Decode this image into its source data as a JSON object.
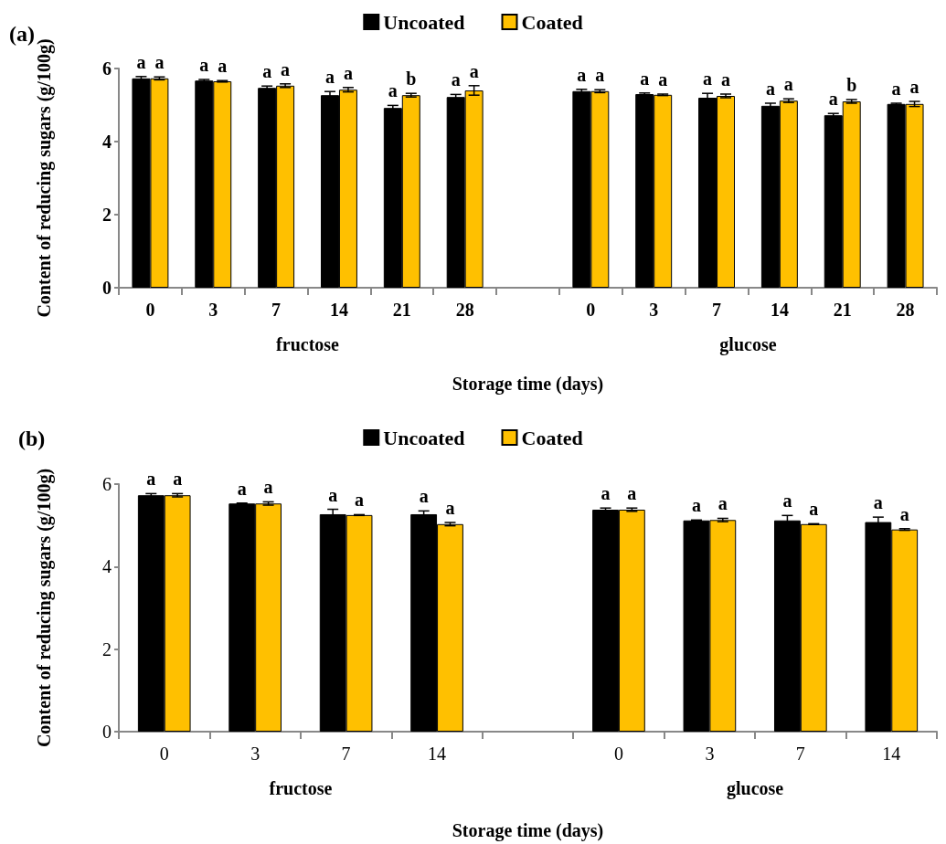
{
  "chart_data": [
    {
      "type": "bar",
      "title": "(a)",
      "xlabel": "Storage time (days)",
      "ylabel": "Content of reducing sugars (g/100g)",
      "categories": [
        "0",
        "3",
        "7",
        "14",
        "21",
        "28",
        null,
        "0",
        "3",
        "7",
        "14",
        "21",
        "28"
      ],
      "series": [
        {
          "name": "Uncoated",
          "color": "#000000",
          "values": [
            5.73,
            5.67,
            5.47,
            5.27,
            4.92,
            5.22,
            null,
            5.38,
            5.3,
            5.2,
            4.98,
            4.72,
            5.03
          ],
          "errors": [
            0.05,
            0.03,
            0.05,
            0.1,
            0.07,
            0.07,
            null,
            0.05,
            0.03,
            0.12,
            0.07,
            0.05,
            0.02
          ],
          "value_labels": [
            "a",
            "a",
            "a",
            "a",
            "a",
            "a",
            null,
            "a",
            "a",
            "a",
            "a",
            "a",
            "a"
          ]
        },
        {
          "name": "Coated",
          "color": "#ffc000",
          "values": [
            5.73,
            5.65,
            5.53,
            5.42,
            5.27,
            5.4,
            null,
            5.38,
            5.28,
            5.25,
            5.12,
            5.1,
            5.03
          ],
          "errors": [
            0.04,
            0.02,
            0.05,
            0.06,
            0.05,
            0.13,
            null,
            0.04,
            0.02,
            0.05,
            0.05,
            0.05,
            0.07
          ],
          "value_labels": [
            "a",
            "a",
            "a",
            "a",
            "b",
            "a",
            null,
            "a",
            "a",
            "a",
            "a",
            "b",
            "a"
          ]
        }
      ],
      "ylim": [
        0,
        6
      ],
      "yticks": [
        0,
        2,
        4,
        6
      ],
      "grid": false,
      "legend": "top",
      "annotations": [
        "fructose",
        "glucose"
      ]
    },
    {
      "type": "bar",
      "title": "(b)",
      "xlabel": "Storage time (days)",
      "ylabel": "Content of reducing sugars (g/100g)",
      "categories": [
        "0",
        "3",
        "7",
        "14",
        null,
        "0",
        "3",
        "7",
        "14"
      ],
      "series": [
        {
          "name": "Uncoated",
          "color": "#000000",
          "values": [
            5.73,
            5.53,
            5.27,
            5.27,
            null,
            5.38,
            5.12,
            5.12,
            5.08
          ],
          "errors": [
            0.04,
            0.01,
            0.12,
            0.08,
            null,
            0.04,
            0.01,
            0.12,
            0.12
          ],
          "value_labels": [
            "a",
            "a",
            "a",
            "a",
            null,
            "a",
            "a",
            "a",
            "a"
          ]
        },
        {
          "name": "Coated",
          "color": "#ffc000",
          "values": [
            5.73,
            5.53,
            5.25,
            5.03,
            null,
            5.38,
            5.13,
            5.03,
            4.9
          ],
          "errors": [
            0.04,
            0.04,
            0.01,
            0.04,
            null,
            0.04,
            0.04,
            0.01,
            0.02
          ],
          "value_labels": [
            "a",
            "a",
            "a",
            "a",
            null,
            "a",
            "a",
            "a",
            "a"
          ]
        }
      ],
      "ylim": [
        0,
        6
      ],
      "yticks": [
        0,
        2,
        4,
        6
      ],
      "grid": false,
      "legend": "top",
      "annotations": [
        "fructose",
        "glucose"
      ]
    }
  ]
}
